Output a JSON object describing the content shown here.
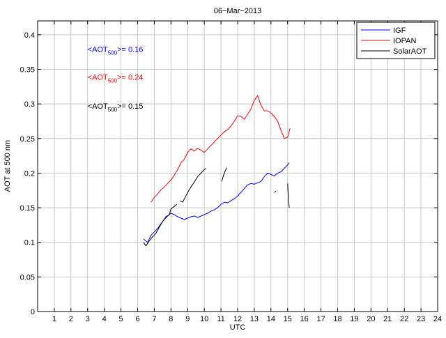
{
  "chart_data": {
    "type": "line",
    "title": "06−Mar−2013",
    "xlabel": "UTC",
    "ylabel": "AOT at 500 nm",
    "xlim": [
      0,
      24
    ],
    "ylim": [
      0,
      0.42
    ],
    "grid": true,
    "legend_position": "top-right",
    "x_ticks": [
      "1",
      "2",
      "3",
      "4",
      "5",
      "6",
      "7",
      "8",
      "9",
      "10",
      "11",
      "12",
      "13",
      "14",
      "15",
      "16",
      "17",
      "18",
      "19",
      "20",
      "21",
      "22",
      "23",
      "24"
    ],
    "y_ticks": [
      "0",
      "0.05",
      "0.1",
      "0.15",
      "0.2",
      "0.25",
      "0.3",
      "0.35",
      "0.4"
    ],
    "series": [
      {
        "name": "IGF",
        "color": "#0000ff",
        "segments": [
          [
            [
              6.35,
              0.105
            ],
            [
              6.6,
              0.1
            ],
            [
              6.8,
              0.11
            ],
            [
              7.0,
              0.115
            ],
            [
              7.2,
              0.12
            ],
            [
              7.4,
              0.127
            ],
            [
              7.6,
              0.133
            ],
            [
              7.8,
              0.138
            ],
            [
              8.0,
              0.142
            ],
            [
              8.2,
              0.14
            ],
            [
              8.4,
              0.137
            ],
            [
              8.6,
              0.135
            ],
            [
              8.8,
              0.133
            ],
            [
              9.0,
              0.135
            ],
            [
              9.2,
              0.137
            ],
            [
              9.4,
              0.138
            ],
            [
              9.6,
              0.136
            ],
            [
              9.8,
              0.138
            ],
            [
              10.0,
              0.14
            ],
            [
              10.2,
              0.142
            ],
            [
              10.4,
              0.145
            ],
            [
              10.6,
              0.147
            ],
            [
              10.8,
              0.15
            ],
            [
              11.0,
              0.155
            ],
            [
              11.2,
              0.158
            ],
            [
              11.4,
              0.157
            ],
            [
              11.6,
              0.16
            ],
            [
              11.8,
              0.163
            ],
            [
              12.0,
              0.167
            ],
            [
              12.2,
              0.172
            ],
            [
              12.4,
              0.178
            ],
            [
              12.6,
              0.183
            ],
            [
              12.8,
              0.185
            ],
            [
              13.0,
              0.184
            ],
            [
              13.2,
              0.186
            ],
            [
              13.4,
              0.188
            ],
            [
              13.6,
              0.195
            ],
            [
              13.8,
              0.2
            ],
            [
              14.0,
              0.198
            ],
            [
              14.2,
              0.196
            ],
            [
              14.4,
              0.2
            ],
            [
              14.6,
              0.202
            ],
            [
              14.8,
              0.207
            ],
            [
              15.0,
              0.212
            ],
            [
              15.1,
              0.215
            ]
          ]
        ]
      },
      {
        "name": "IOPAN",
        "color": "#ff0000",
        "segments": [
          [
            [
              6.8,
              0.158
            ],
            [
              7.0,
              0.165
            ],
            [
              7.2,
              0.17
            ],
            [
              7.4,
              0.176
            ],
            [
              7.6,
              0.18
            ],
            [
              7.8,
              0.185
            ],
            [
              8.0,
              0.19
            ],
            [
              8.2,
              0.197
            ],
            [
              8.4,
              0.205
            ],
            [
              8.6,
              0.215
            ],
            [
              8.8,
              0.22
            ],
            [
              9.0,
              0.23
            ],
            [
              9.2,
              0.235
            ],
            [
              9.4,
              0.232
            ],
            [
              9.6,
              0.236
            ],
            [
              9.8,
              0.233
            ],
            [
              10.0,
              0.23
            ],
            [
              10.2,
              0.235
            ],
            [
              10.4,
              0.24
            ],
            [
              10.6,
              0.245
            ],
            [
              10.8,
              0.25
            ],
            [
              11.0,
              0.255
            ],
            [
              11.2,
              0.26
            ],
            [
              11.4,
              0.263
            ],
            [
              11.6,
              0.268
            ],
            [
              11.8,
              0.275
            ],
            [
              12.0,
              0.283
            ],
            [
              12.2,
              0.282
            ],
            [
              12.4,
              0.278
            ],
            [
              12.6,
              0.285
            ],
            [
              12.8,
              0.293
            ],
            [
              13.0,
              0.305
            ],
            [
              13.2,
              0.312
            ],
            [
              13.4,
              0.298
            ],
            [
              13.6,
              0.29
            ],
            [
              13.8,
              0.29
            ],
            [
              14.0,
              0.287
            ],
            [
              14.2,
              0.282
            ],
            [
              14.4,
              0.275
            ],
            [
              14.6,
              0.262
            ],
            [
              14.8,
              0.25
            ],
            [
              15.0,
              0.252
            ],
            [
              15.15,
              0.265
            ]
          ]
        ]
      },
      {
        "name": "SolarAOT",
        "color": "#000000",
        "segments": [
          [
            [
              6.35,
              0.1
            ],
            [
              6.5,
              0.095
            ],
            [
              6.7,
              0.102
            ],
            [
              6.9,
              0.108
            ],
            [
              7.1,
              0.113
            ],
            [
              7.3,
              0.122
            ],
            [
              7.5,
              0.13
            ],
            [
              7.7,
              0.137
            ],
            [
              7.9,
              0.14
            ],
            [
              8.0,
              0.148
            ],
            [
              8.2,
              0.152
            ],
            [
              8.35,
              0.155
            ]
          ],
          [
            [
              8.55,
              0.16
            ],
            [
              8.7,
              0.158
            ],
            [
              8.85,
              0.165
            ],
            [
              9.0,
              0.172
            ],
            [
              9.2,
              0.18
            ],
            [
              9.4,
              0.187
            ],
            [
              9.6,
              0.195
            ],
            [
              9.8,
              0.2
            ],
            [
              10.0,
              0.205
            ],
            [
              10.1,
              0.207
            ]
          ],
          [
            [
              11.05,
              0.188
            ],
            [
              11.15,
              0.197
            ],
            [
              11.25,
              0.203
            ],
            [
              11.35,
              0.208
            ]
          ],
          [
            [
              14.2,
              0.172
            ],
            [
              14.3,
              0.174
            ]
          ],
          [
            [
              15.0,
              0.185
            ],
            [
              15.05,
              0.163
            ],
            [
              15.1,
              0.15
            ]
          ]
        ]
      }
    ],
    "annotations": [
      {
        "prefix": "<AOT",
        "sub": "500",
        "suffix": ">= 0.16",
        "color": "#0000ff",
        "x": 3.5,
        "y": 0.375
      },
      {
        "prefix": "<AOT",
        "sub": "500",
        "suffix": ">= 0.24",
        "color": "#ff0000",
        "x": 3.5,
        "y": 0.335
      },
      {
        "prefix": "<AOT",
        "sub": "500",
        "suffix": ">= 0.15",
        "color": "#000000",
        "x": 3.5,
        "y": 0.293
      }
    ]
  }
}
